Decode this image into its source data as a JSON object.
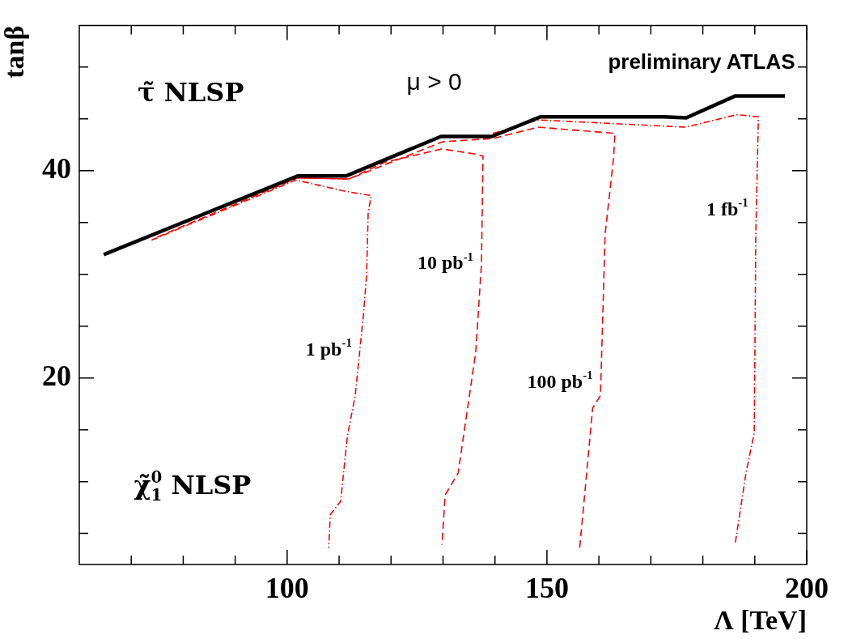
{
  "chart_data": {
    "type": "line",
    "xlabel": "Λ [TeV]",
    "ylabel": "tanβ",
    "xlim": [
      60,
      200
    ],
    "ylim": [
      2,
      54
    ],
    "xticks": [
      {
        "value": 70,
        "label": null
      },
      {
        "value": 80,
        "label": null
      },
      {
        "value": 90,
        "label": null
      },
      100,
      {
        "value": 110,
        "label": null
      },
      {
        "value": 120,
        "label": null
      },
      {
        "value": 130,
        "label": null
      },
      {
        "value": 140,
        "label": null
      },
      150,
      {
        "value": 160,
        "label": null
      },
      {
        "value": 170,
        "label": null
      },
      {
        "value": 180,
        "label": null
      },
      {
        "value": 190,
        "label": null
      },
      200
    ],
    "yticks": [
      {
        "value": 5,
        "label": null
      },
      {
        "value": 10,
        "label": null
      },
      {
        "value": 15,
        "label": null
      },
      20,
      {
        "value": 25,
        "label": null
      },
      {
        "value": 30,
        "label": null
      },
      {
        "value": 35,
        "label": null
      },
      40,
      {
        "value": 45,
        "label": null
      },
      {
        "value": 50,
        "label": null
      }
    ],
    "grid": false,
    "legend": false,
    "marker": "none",
    "annotations": [
      "τ̃ NLSP",
      "χ̃$_{1}$$^{0}$ NLSP",
      "μ > 0",
      "preliminary ATLAS"
    ],
    "series": [
      {
        "color": "#000000",
        "line_style": "solid",
        "x": [
          64.7,
          102.1,
          111.4,
          129.6,
          139.4,
          148.8,
          172.5,
          176.8,
          186.2,
          195.8
        ],
        "values": [
          31.9,
          39.5,
          39.5,
          43.3,
          43.3,
          45.2,
          45.2,
          45.1,
          47.2,
          47.2
        ]
      },
      {
        "name": "1 pb$^{-1}$",
        "color": "#ff0000",
        "line_style": "dashdot",
        "x": [
          73.9,
          101.7,
          111.2,
          116.2,
          115.6,
          115.3,
          114.7,
          113.1,
          111.6,
          110.3,
          108.3,
          108.0
        ],
        "values": [
          33.3,
          39.1,
          38.0,
          37.6,
          36.0,
          30.0,
          26.2,
          18.3,
          14.4,
          8.1,
          6.8,
          3.6
        ]
      },
      {
        "name": "10 pb$^{-1}$",
        "color": "#ff0000",
        "line_style": "dashed",
        "x": [
          75.0,
          102.0,
          111.9,
          118.7,
          129.8,
          136.3,
          137.7,
          137.4,
          136.3,
          132.9,
          130.4,
          129.8
        ],
        "values": [
          33.6,
          39.3,
          39.2,
          40.8,
          42.1,
          41.6,
          41.4,
          31.0,
          22.5,
          10.8,
          8.7,
          3.9
        ]
      },
      {
        "name": "100 pb$^{-1}$",
        "color": "#ff0000",
        "line_style": "dashed",
        "x": [
          102.0,
          111.9,
          130.0,
          139.6,
          148.3,
          163.1,
          162.8,
          161.2,
          160.3,
          158.8,
          156.9,
          156.3
        ],
        "values": [
          39.3,
          39.2,
          42.8,
          43.1,
          44.2,
          43.6,
          41.1,
          33.9,
          18.3,
          17.1,
          6.8,
          3.6
        ]
      },
      {
        "name": "1 fb$^{-1}$",
        "color": "#ff0000",
        "line_style": "dashdot",
        "x": [
          139.6,
          148.3,
          176.7,
          186.5,
          190.7,
          190.2,
          189.9,
          188.3,
          186.2
        ],
        "values": [
          43.6,
          44.9,
          44.2,
          45.4,
          45.2,
          33.9,
          14.7,
          10.8,
          3.9
        ]
      }
    ]
  }
}
